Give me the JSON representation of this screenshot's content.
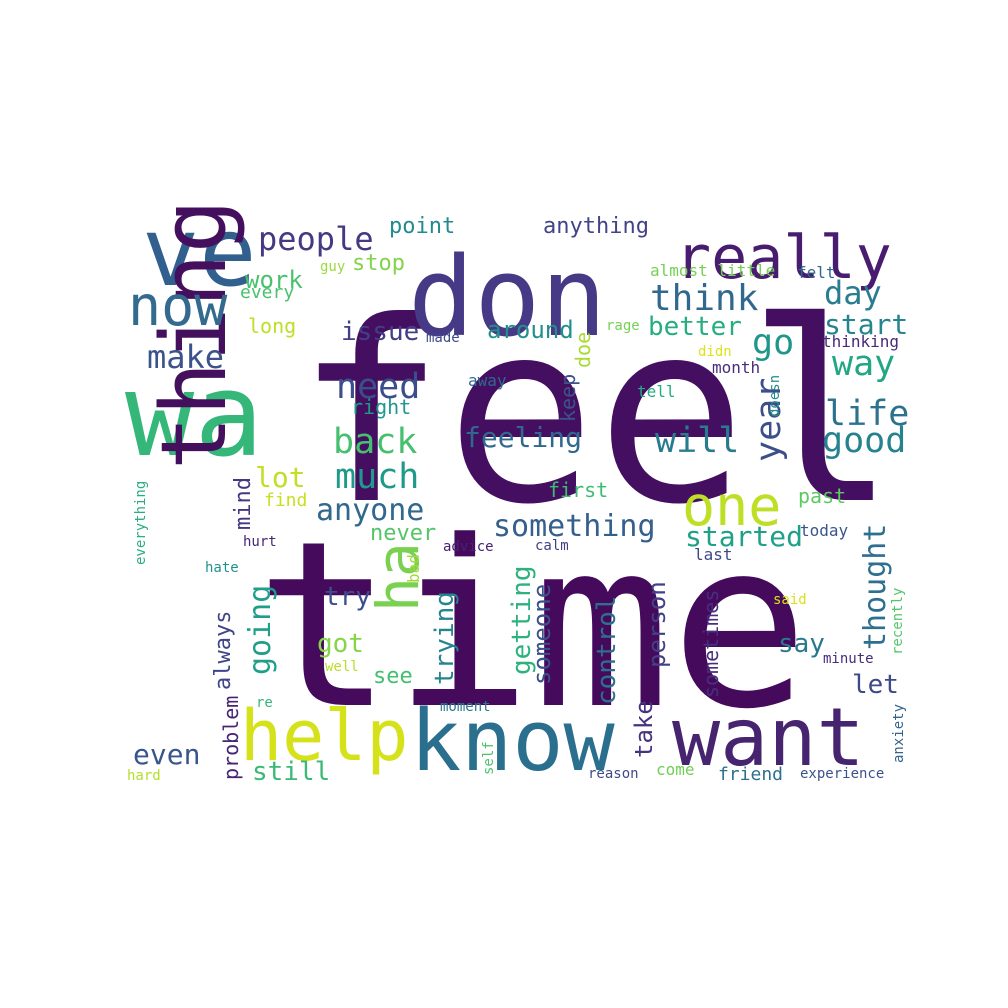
{
  "words": [
    {
      "text": "feel",
      "color": "#440f61"
    },
    {
      "text": "time",
      "color": "#450a5c"
    },
    {
      "text": "wa",
      "color": "#35b77a"
    },
    {
      "text": "don",
      "color": "#463a86"
    },
    {
      "text": "ve",
      "color": "#32608e"
    },
    {
      "text": "really",
      "color": "#481c6e"
    },
    {
      "text": "know",
      "color": "#2b6f8e"
    },
    {
      "text": "want",
      "color": "#46246f"
    },
    {
      "text": "thing",
      "color": "#44105e"
    },
    {
      "text": "help",
      "color": "#d5e21a"
    },
    {
      "text": "now",
      "color": "#336a8e"
    },
    {
      "text": "ha",
      "color": "#7ad151"
    },
    {
      "text": "one",
      "color": "#bddf26"
    },
    {
      "text": "people",
      "color": "#443a83"
    },
    {
      "text": "think",
      "color": "#31688e"
    },
    {
      "text": "need",
      "color": "#3b4d8b"
    },
    {
      "text": "much",
      "color": "#1f9a8a"
    },
    {
      "text": "back",
      "color": "#46c06f"
    },
    {
      "text": "make",
      "color": "#3b528b"
    },
    {
      "text": "life",
      "color": "#2c728e"
    },
    {
      "text": "good",
      "color": "#26828e"
    },
    {
      "text": "day",
      "color": "#287d8e"
    },
    {
      "text": "way",
      "color": "#22a785"
    },
    {
      "text": "go",
      "color": "#1f958b"
    },
    {
      "text": "will",
      "color": "#287c8e"
    },
    {
      "text": "year",
      "color": "#3c4f8a"
    },
    {
      "text": "start",
      "color": "#25858e"
    },
    {
      "text": "better",
      "color": "#27ad81"
    },
    {
      "text": "feeling",
      "color": "#31688e"
    },
    {
      "text": "anyone",
      "color": "#31688e"
    },
    {
      "text": "something",
      "color": "#355f8d"
    },
    {
      "text": "started",
      "color": "#1fa088"
    },
    {
      "text": "thought",
      "color": "#2e6e8e"
    },
    {
      "text": "going",
      "color": "#1f9e89"
    },
    {
      "text": "lot",
      "color": "#c0df25"
    },
    {
      "text": "issue",
      "color": "#433e85"
    },
    {
      "text": "around",
      "color": "#21908d"
    },
    {
      "text": "work",
      "color": "#4ac16d"
    },
    {
      "text": "stop",
      "color": "#84d44b"
    },
    {
      "text": "point",
      "color": "#238a8d"
    },
    {
      "text": "anything",
      "color": "#414487"
    },
    {
      "text": "even",
      "color": "#39568c"
    },
    {
      "text": "still",
      "color": "#3aba76"
    },
    {
      "text": "try",
      "color": "#3d4e8a"
    },
    {
      "text": "got",
      "color": "#86d549"
    },
    {
      "text": "see",
      "color": "#44bf70"
    },
    {
      "text": "trying",
      "color": "#25848e"
    },
    {
      "text": "getting",
      "color": "#2db27d"
    },
    {
      "text": "someone",
      "color": "#3b518b"
    },
    {
      "text": "control",
      "color": "#2e6e8e"
    },
    {
      "text": "person",
      "color": "#424086"
    },
    {
      "text": "take",
      "color": "#46327e"
    },
    {
      "text": "say",
      "color": "#2a788e"
    },
    {
      "text": "let",
      "color": "#3e4989"
    },
    {
      "text": "sometimes",
      "color": "#472f7d"
    },
    {
      "text": "always",
      "color": "#404588"
    },
    {
      "text": "problem",
      "color": "#482475"
    },
    {
      "text": "mind",
      "color": "#453882"
    },
    {
      "text": "never",
      "color": "#54c568"
    },
    {
      "text": "first",
      "color": "#3dbc74"
    },
    {
      "text": "past",
      "color": "#5ec962"
    },
    {
      "text": "keep",
      "color": "#3b528b"
    },
    {
      "text": "doe",
      "color": "#a8db34"
    },
    {
      "text": "long",
      "color": "#bddf26"
    },
    {
      "text": "every",
      "color": "#4ac16d"
    },
    {
      "text": "find",
      "color": "#c8e020"
    },
    {
      "text": "right",
      "color": "#1f9a8a"
    },
    {
      "text": "away",
      "color": "#31688e"
    },
    {
      "text": "tell",
      "color": "#25ab82"
    },
    {
      "text": "month",
      "color": "#472d7b"
    },
    {
      "text": "thinking",
      "color": "#482878"
    },
    {
      "text": "almost little",
      "color": "#75d054"
    },
    {
      "text": "felt",
      "color": "#31688e"
    },
    {
      "text": "guy",
      "color": "#9bd93c"
    },
    {
      "text": "made",
      "color": "#3e4a89"
    },
    {
      "text": "rage",
      "color": "#75d054"
    },
    {
      "text": "didn",
      "color": "#dde318"
    },
    {
      "text": "doesn",
      "color": "#228c8d"
    },
    {
      "text": "today",
      "color": "#39558c"
    },
    {
      "text": "last",
      "color": "#3f4788"
    },
    {
      "text": "calm",
      "color": "#433e85"
    },
    {
      "text": "advice",
      "color": "#482173"
    },
    {
      "text": "hurt",
      "color": "#482677"
    },
    {
      "text": "hate",
      "color": "#21918c"
    },
    {
      "text": "everything",
      "color": "#29af7f"
    },
    {
      "text": "bad",
      "color": "#a0da39"
    },
    {
      "text": "well",
      "color": "#b8de29"
    },
    {
      "text": "re",
      "color": "#35b779"
    },
    {
      "text": "said",
      "color": "#d8e219"
    },
    {
      "text": "minute",
      "color": "#472c7a"
    },
    {
      "text": "recently",
      "color": "#52c569"
    },
    {
      "text": "anxiety",
      "color": "#32648e"
    },
    {
      "text": "moment",
      "color": "#2a788e"
    },
    {
      "text": "self",
      "color": "#4cc26c"
    },
    {
      "text": "reason",
      "color": "#3e4a89"
    },
    {
      "text": "come",
      "color": "#70cf57"
    },
    {
      "text": "friend",
      "color": "#2e6f8e"
    },
    {
      "text": "experience",
      "color": "#3b528b"
    },
    {
      "text": "hard",
      "color": "#b5de2b"
    }
  ]
}
